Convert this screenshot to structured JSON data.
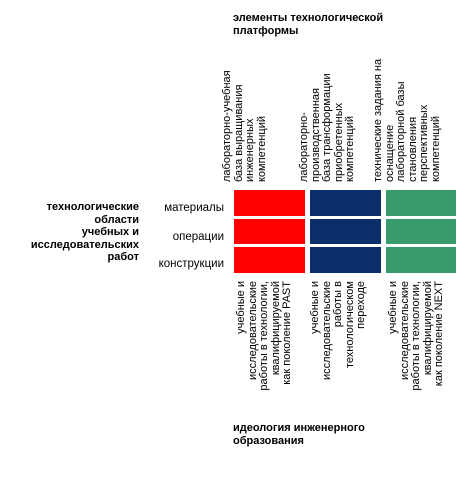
{
  "top_title": "элементы технологической\nплатформы",
  "left_title": "технологические\nобласти\nучебных и\nисследовательских\nработ",
  "bottom_title": "идеология инженерного\nобразования",
  "rows": [
    "материалы",
    "операции",
    "конструкции"
  ],
  "columns": [
    {
      "color": "#ff0000",
      "top_text": "лабораторно-учебная\nбаза выращивания\nинженерных\nкомпетенций",
      "bottom_text": "учебные и\nисследовательские\nработы в технологии,\nквалифицируемой\nкак поколение PAST"
    },
    {
      "color": "#0b2f6a",
      "top_text": "лабораторно-\nпроизводственная\nбаза трансформации\nприобретенных\nкомпетенций",
      "bottom_text": "учебные и\nисследовательские\nработы в\nтехнологическом\nпереходе"
    },
    {
      "color": "#379b6c",
      "top_text": "технические задания на\nоснащение\nлабораторной базы\nстановления\nперспективных\nкомпетенций",
      "bottom_text": "учебные и\nисследовательские\nработы в технологии,\nквалифицируемой\nкак поколение NEXT"
    }
  ]
}
